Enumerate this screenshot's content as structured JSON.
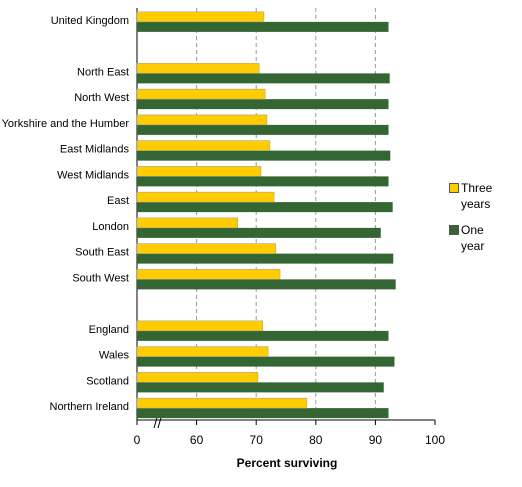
{
  "chart_data": {
    "type": "hbar",
    "xlabel": "Percent surviving",
    "categories": [
      "United Kingdom",
      null,
      "North East",
      "North West",
      "Yorkshire and the Humber",
      "East Midlands",
      "West Midlands",
      "East",
      "London",
      "South East",
      "South West",
      null,
      "England",
      "Wales",
      "Scotland",
      "Northern Ireland"
    ],
    "series": [
      {
        "name": "Three years",
        "color": "#ffcc00",
        "values": [
          71.3,
          null,
          70.5,
          71.5,
          71.8,
          72.3,
          70.8,
          73.0,
          66.9,
          73.3,
          74.0,
          null,
          71.1,
          72.0,
          70.3,
          78.5
        ]
      },
      {
        "name": "One year",
        "color": "#336633",
        "values": [
          92.2,
          null,
          92.4,
          92.2,
          92.2,
          92.5,
          92.2,
          92.9,
          90.9,
          93.0,
          93.4,
          null,
          92.2,
          93.2,
          91.4,
          92.2
        ]
      }
    ],
    "xlim": [
      0,
      100
    ],
    "xticks": [
      0,
      60,
      70,
      80,
      90,
      100
    ],
    "axis_break": true,
    "grid": true,
    "legend": "right"
  }
}
